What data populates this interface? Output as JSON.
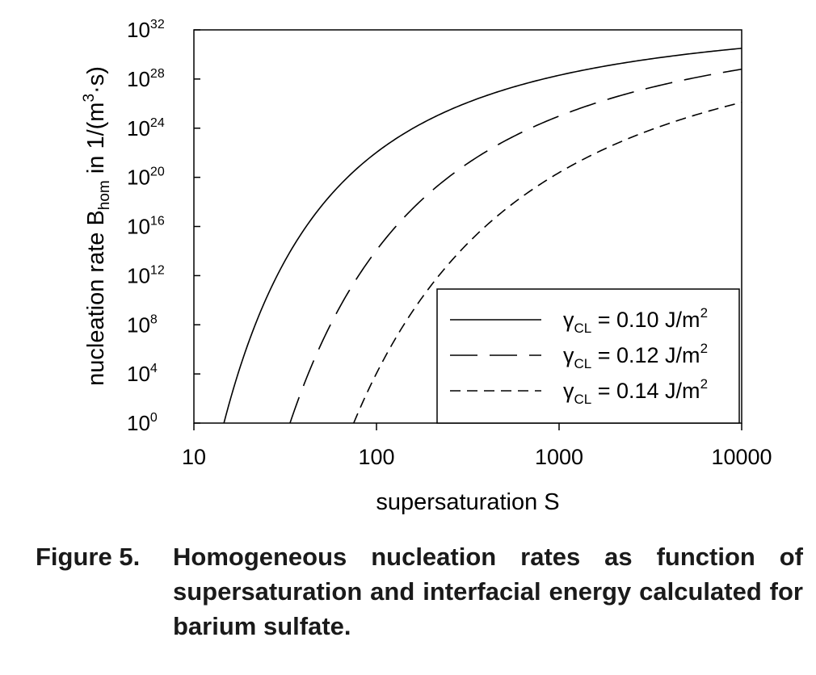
{
  "chart_data": {
    "type": "line",
    "xscale": "log",
    "yscale": "log",
    "xlim": [
      10,
      10000
    ],
    "ylim": [
      1,
      1e+32
    ],
    "xlabel": "supersaturation S",
    "ylabel": {
      "prefix": "nucleation rate B",
      "subscript": "hom",
      "suffix_pre": " in 1/(m",
      "superscript": "3",
      "suffix_post": "·s)"
    },
    "x_ticks": [
      "10",
      "100",
      "1000",
      "10000"
    ],
    "y_ticks": [
      {
        "base": "10",
        "exp": "0"
      },
      {
        "base": "10",
        "exp": "4"
      },
      {
        "base": "10",
        "exp": "8"
      },
      {
        "base": "10",
        "exp": "12"
      },
      {
        "base": "10",
        "exp": "16"
      },
      {
        "base": "10",
        "exp": "20"
      },
      {
        "base": "10",
        "exp": "24"
      },
      {
        "base": "10",
        "exp": "28"
      },
      {
        "base": "10",
        "exp": "32"
      }
    ],
    "legend_position": "bottom-right",
    "series": [
      {
        "symbol": "γ",
        "subscript": "CL",
        "value_text": " = 0.10 J/m",
        "sup": "2",
        "style": "solid",
        "gamma": 0.1,
        "x_start": 14.6,
        "log10_y_at_10000": 30.5
      },
      {
        "symbol": "γ",
        "subscript": "CL",
        "value_text": " = 0.12 J/m",
        "sup": "2",
        "style": "long-dash",
        "gamma": 0.12,
        "x_start": 33.6,
        "log10_y_at_10000": 28.8
      },
      {
        "symbol": "γ",
        "subscript": "CL",
        "value_text": " = 0.14 J/m",
        "sup": "2",
        "style": "short-dash",
        "gamma": 0.14,
        "x_start": 75.0,
        "log10_y_at_10000": 26.1
      }
    ]
  },
  "caption": {
    "label": "Figure 5.",
    "text": "Homogeneous nucleation rates as function of supersaturation and interfacial energy calculated for barium sulfate."
  }
}
